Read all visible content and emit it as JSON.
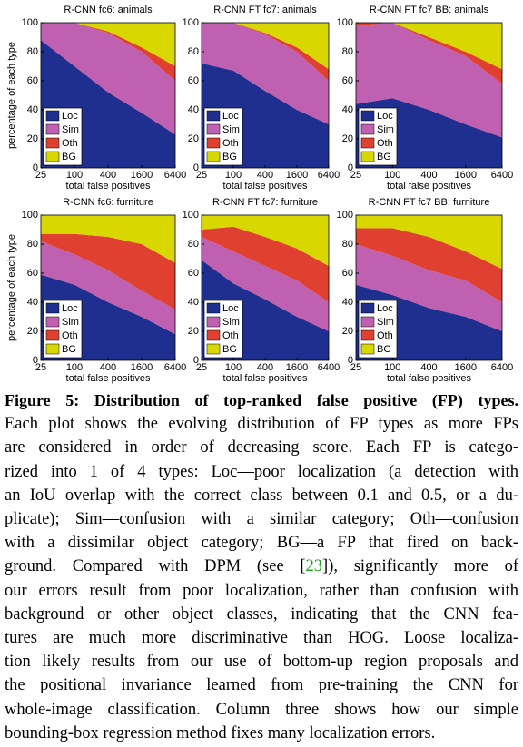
{
  "chart_data": [
    {
      "type": "area",
      "title": "R-CNN fc6: animals",
      "xlabel": "total false positives",
      "ylabel": "percentage of each type",
      "x": [
        25,
        100,
        400,
        1600,
        6400
      ],
      "xlim": [
        25,
        6400
      ],
      "xticks": [
        25,
        100,
        400,
        1600,
        6400
      ],
      "xscale": "log",
      "ylim": [
        0,
        100
      ],
      "yticks": [
        0,
        20,
        40,
        60,
        80,
        100
      ],
      "stacked": true,
      "legend": "lower left",
      "series": [
        {
          "name": "Loc",
          "color": "#1f2f8f",
          "values": [
            88,
            70,
            52,
            38,
            23
          ]
        },
        {
          "name": "Sim",
          "color": "#c060b0",
          "values": [
            12,
            30,
            41,
            42,
            37
          ]
        },
        {
          "name": "Oth",
          "color": "#e04030",
          "values": [
            0,
            0,
            1,
            3,
            10
          ]
        },
        {
          "name": "BG",
          "color": "#d8d800",
          "values": [
            0,
            0,
            6,
            17,
            30
          ]
        }
      ]
    },
    {
      "type": "area",
      "title": "R-CNN FT fc7: animals",
      "xlabel": "total false positives",
      "x": [
        25,
        100,
        400,
        1600,
        6400
      ],
      "xlim": [
        25,
        6400
      ],
      "xticks": [
        25,
        100,
        400,
        1600,
        6400
      ],
      "xscale": "log",
      "ylim": [
        0,
        100
      ],
      "yticks": [
        0,
        20,
        40,
        60,
        80,
        100
      ],
      "stacked": true,
      "legend": "lower left",
      "series": [
        {
          "name": "Loc",
          "color": "#1f2f8f",
          "values": [
            72,
            67,
            53,
            40,
            30
          ]
        },
        {
          "name": "Sim",
          "color": "#c060b0",
          "values": [
            28,
            33,
            39,
            40,
            30
          ]
        },
        {
          "name": "Oth",
          "color": "#e04030",
          "values": [
            0,
            0,
            1,
            3,
            8
          ]
        },
        {
          "name": "BG",
          "color": "#d8d800",
          "values": [
            0,
            0,
            7,
            17,
            32
          ]
        }
      ]
    },
    {
      "type": "area",
      "title": "R-CNN FT fc7 BB: animals",
      "xlabel": "total false positives",
      "x": [
        25,
        100,
        400,
        1600,
        6400
      ],
      "xlim": [
        25,
        6400
      ],
      "xticks": [
        25,
        100,
        400,
        1600,
        6400
      ],
      "xscale": "log",
      "ylim": [
        0,
        100
      ],
      "yticks": [
        0,
        20,
        40,
        60,
        80,
        100
      ],
      "stacked": true,
      "legend": "lower left",
      "series": [
        {
          "name": "Loc",
          "color": "#1f2f8f",
          "values": [
            44,
            48,
            40,
            30,
            21
          ]
        },
        {
          "name": "Sim",
          "color": "#c060b0",
          "values": [
            54,
            52,
            48,
            47,
            37
          ]
        },
        {
          "name": "Oth",
          "color": "#e04030",
          "values": [
            2,
            0,
            2,
            3,
            10
          ]
        },
        {
          "name": "BG",
          "color": "#d8d800",
          "values": [
            0,
            0,
            10,
            20,
            32
          ]
        }
      ]
    },
    {
      "type": "area",
      "title": "R-CNN fc6: furniture",
      "xlabel": "total false positives",
      "ylabel": "percentage of each type",
      "x": [
        25,
        100,
        400,
        1600,
        6400
      ],
      "xlim": [
        25,
        6400
      ],
      "xticks": [
        25,
        100,
        400,
        1600,
        6400
      ],
      "xscale": "log",
      "ylim": [
        0,
        100
      ],
      "yticks": [
        0,
        20,
        40,
        60,
        80,
        100
      ],
      "stacked": true,
      "legend": "lower left",
      "series": [
        {
          "name": "Loc",
          "color": "#1f2f8f",
          "values": [
            59,
            52,
            40,
            30,
            18
          ]
        },
        {
          "name": "Sim",
          "color": "#c060b0",
          "values": [
            23,
            21,
            22,
            18,
            17
          ]
        },
        {
          "name": "Oth",
          "color": "#e04030",
          "values": [
            5,
            14,
            23,
            32,
            32
          ]
        },
        {
          "name": "BG",
          "color": "#d8d800",
          "values": [
            13,
            13,
            15,
            20,
            33
          ]
        }
      ]
    },
    {
      "type": "area",
      "title": "R-CNN FT fc7: furniture",
      "xlabel": "total false positives",
      "x": [
        25,
        100,
        400,
        1600,
        6400
      ],
      "xlim": [
        25,
        6400
      ],
      "xticks": [
        25,
        100,
        400,
        1600,
        6400
      ],
      "xscale": "log",
      "ylim": [
        0,
        100
      ],
      "yticks": [
        0,
        20,
        40,
        60,
        80,
        100
      ],
      "stacked": true,
      "legend": "lower left",
      "series": [
        {
          "name": "Loc",
          "color": "#1f2f8f",
          "values": [
            69,
            53,
            42,
            30,
            20
          ]
        },
        {
          "name": "Sim",
          "color": "#c060b0",
          "values": [
            16,
            22,
            23,
            25,
            20
          ]
        },
        {
          "name": "Oth",
          "color": "#e04030",
          "values": [
            5,
            17,
            20,
            22,
            25
          ]
        },
        {
          "name": "BG",
          "color": "#d8d800",
          "values": [
            10,
            8,
            15,
            23,
            35
          ]
        }
      ]
    },
    {
      "type": "area",
      "title": "R-CNN FT fc7 BB: furniture",
      "xlabel": "total false positives",
      "x": [
        25,
        100,
        400,
        1600,
        6400
      ],
      "xlim": [
        25,
        6400
      ],
      "xticks": [
        25,
        100,
        400,
        1600,
        6400
      ],
      "xscale": "log",
      "ylim": [
        0,
        100
      ],
      "yticks": [
        0,
        20,
        40,
        60,
        80,
        100
      ],
      "stacked": true,
      "legend": "lower left",
      "series": [
        {
          "name": "Loc",
          "color": "#1f2f8f",
          "values": [
            52,
            45,
            36,
            30,
            20
          ]
        },
        {
          "name": "Sim",
          "color": "#c060b0",
          "values": [
            28,
            27,
            26,
            25,
            20
          ]
        },
        {
          "name": "Oth",
          "color": "#e04030",
          "values": [
            11,
            19,
            23,
            20,
            23
          ]
        },
        {
          "name": "BG",
          "color": "#d8d800",
          "values": [
            9,
            9,
            15,
            25,
            37
          ]
        }
      ]
    }
  ],
  "caption": {
    "heading": "Figure 5: Distribution of top-ranked false positive (FP) types.",
    "lines": [
      "Each plot shows the evolving distribution of FP types as more FPs",
      "are considered in order of decreasing score. Each FP is catego-",
      "rized into 1 of 4 types: Loc—poor localization (a detection with",
      "an IoU overlap with the correct class between 0.1 and 0.5, or a du-",
      "plicate); Sim—confusion with a similar category; Oth—confusion",
      "with a dissimilar object category; BG—a FP that fired on back-",
      {
        "before": "ground. Compared with DPM (see [",
        "ref": "23",
        "after": "]), significantly more of"
      },
      "our errors result from poor localization, rather than confusion with",
      "background or other object classes, indicating that the CNN fea-",
      "tures are much more discriminative than HOG. Loose localiza-",
      "tion likely results from our use of bottom-up region proposals and",
      "the positional invariance learned from pre-training the CNN for",
      "whole-image classification. Column three shows how our simple",
      "bounding-box regression method fixes many localization errors."
    ]
  }
}
